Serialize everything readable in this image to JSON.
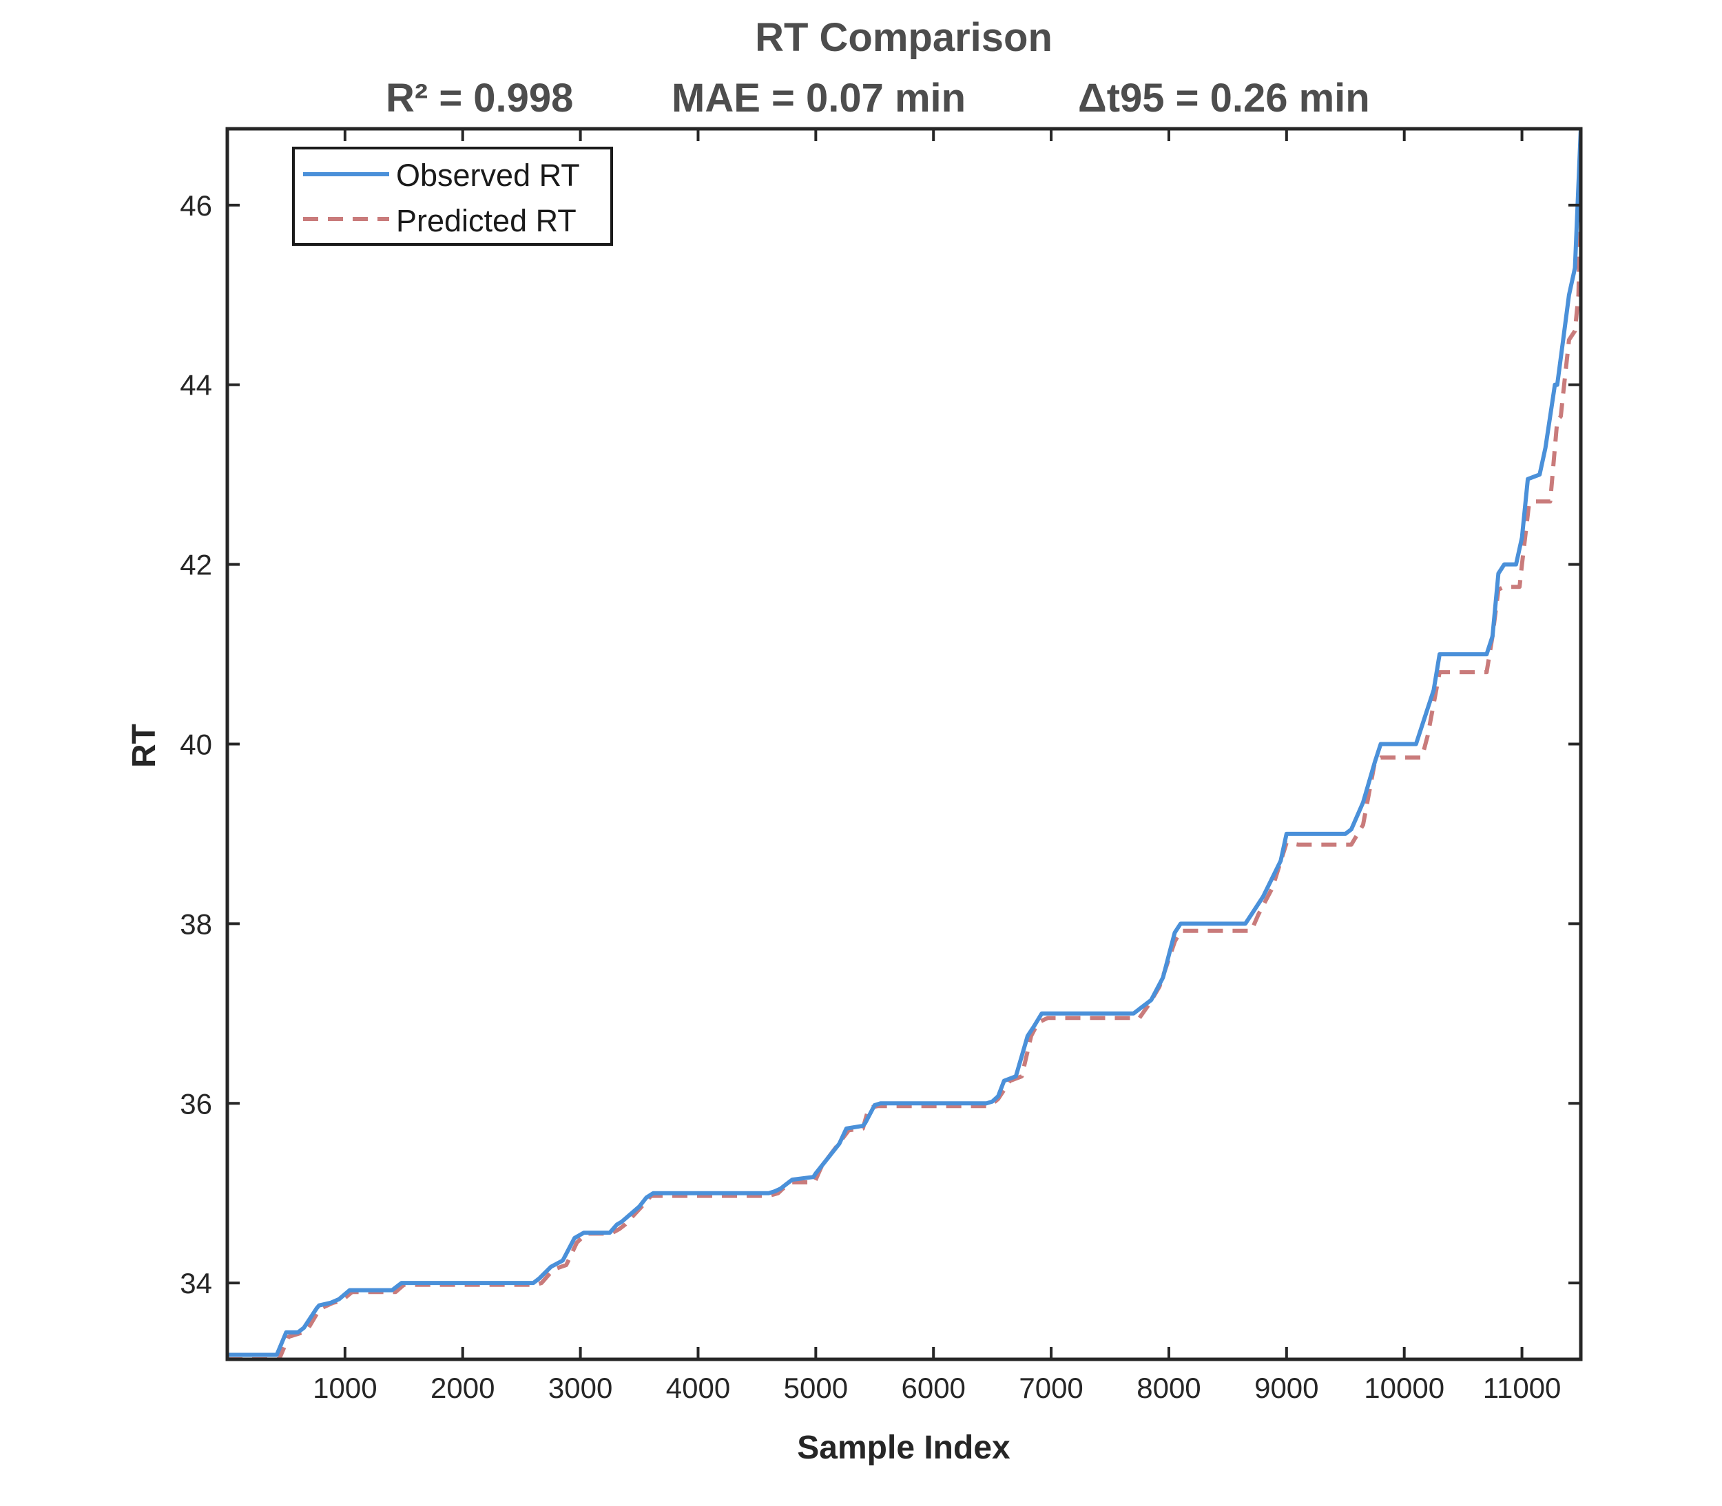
{
  "chart_data": {
    "type": "line",
    "title": "RT Comparison",
    "subtitle": [
      "R² = 0.998",
      "MAE = 0.07 min",
      "Δt95 = 0.26 min"
    ],
    "xlabel": "Sample Index",
    "ylabel": "RT",
    "xlim": [
      0,
      11500
    ],
    "ylim": [
      33.15,
      46.85
    ],
    "xticks": [
      1000,
      2000,
      3000,
      4000,
      5000,
      6000,
      7000,
      8000,
      9000,
      10000,
      11000
    ],
    "yticks": [
      34,
      36,
      38,
      40,
      42,
      44,
      46
    ],
    "grid": false,
    "legend_position": "top-left",
    "series": [
      {
        "name": "Observed RT",
        "color": "#4a90d9",
        "style": "solid",
        "x": [
          0,
          420,
          500,
          600,
          650,
          760,
          780,
          880,
          950,
          1040,
          1400,
          1480,
          2400,
          2600,
          2650,
          2750,
          2850,
          2950,
          3030,
          3250,
          3310,
          3350,
          3500,
          3560,
          3620,
          4600,
          4650,
          4700,
          4750,
          4800,
          4980,
          5000,
          5200,
          5260,
          5400,
          5420,
          5500,
          5550,
          6450,
          6500,
          6550,
          6600,
          6700,
          6800,
          6850,
          6920,
          7700,
          7750,
          7850,
          7950,
          8050,
          8100,
          8650,
          8700,
          8800,
          8950,
          9000,
          9500,
          9550,
          9650,
          9750,
          9800,
          10100,
          10150,
          10250,
          10300,
          10700,
          10750,
          10800,
          10850,
          10950,
          11000,
          11050,
          11150,
          11200,
          11280,
          11300,
          11350,
          11400,
          11450,
          11500
        ],
        "y": [
          33.2,
          33.2,
          33.45,
          33.45,
          33.5,
          33.72,
          33.75,
          33.78,
          33.82,
          33.92,
          33.92,
          34.0,
          34.0,
          34.0,
          34.05,
          34.18,
          34.25,
          34.5,
          34.56,
          34.56,
          34.65,
          34.68,
          34.85,
          34.95,
          35.0,
          35.0,
          35.02,
          35.05,
          35.1,
          35.15,
          35.18,
          35.22,
          35.55,
          35.72,
          35.75,
          35.78,
          35.98,
          36.0,
          36.0,
          36.02,
          36.08,
          36.25,
          36.3,
          36.75,
          36.85,
          37.0,
          37.0,
          37.05,
          37.15,
          37.4,
          37.9,
          38.0,
          38.0,
          38.1,
          38.3,
          38.7,
          39.0,
          39.0,
          39.05,
          39.35,
          39.8,
          40.0,
          40.0,
          40.2,
          40.6,
          41.0,
          41.0,
          41.2,
          41.9,
          42.0,
          42.0,
          42.3,
          42.95,
          43.0,
          43.3,
          44.0,
          44.0,
          44.5,
          45.0,
          45.3,
          46.85
        ]
      },
      {
        "name": "Predicted RT",
        "color": "#c97b7b",
        "style": "dashed",
        "x": [
          0,
          440,
          520,
          640,
          690,
          780,
          800,
          900,
          970,
          1060,
          1430,
          1500,
          2400,
          2620,
          2670,
          2770,
          2880,
          2970,
          3050,
          3260,
          3330,
          3380,
          3520,
          3600,
          4600,
          4680,
          4720,
          4800,
          4990,
          5050,
          5280,
          5400,
          5450,
          5530,
          6480,
          6550,
          6650,
          6750,
          6830,
          6890,
          6970,
          7750,
          7830,
          7920,
          8050,
          8100,
          8700,
          8760,
          8880,
          9000,
          9100,
          9550,
          9650,
          9750,
          9800,
          10150,
          10200,
          10300,
          10700,
          10750,
          10800,
          10850,
          10980,
          11000,
          11060,
          11100,
          11240,
          11300,
          11330,
          11350,
          11400,
          11450,
          11480,
          11500
        ],
        "y": [
          33.15,
          33.15,
          33.4,
          33.45,
          33.5,
          33.7,
          33.72,
          33.78,
          33.8,
          33.9,
          33.9,
          33.98,
          33.98,
          33.98,
          34.0,
          34.15,
          34.2,
          34.45,
          34.55,
          34.55,
          34.6,
          34.65,
          34.85,
          34.97,
          34.97,
          35.0,
          35.05,
          35.12,
          35.12,
          35.3,
          35.7,
          35.72,
          35.95,
          35.97,
          35.97,
          36.05,
          36.25,
          36.3,
          36.75,
          36.9,
          36.95,
          36.95,
          37.1,
          37.3,
          37.8,
          37.92,
          37.92,
          38.1,
          38.4,
          38.9,
          38.88,
          38.88,
          39.1,
          39.8,
          39.85,
          39.85,
          40.1,
          40.8,
          40.8,
          41.2,
          41.72,
          41.75,
          41.75,
          42.0,
          42.67,
          42.7,
          42.7,
          43.6,
          43.65,
          43.9,
          44.5,
          44.6,
          45.0,
          46.2
        ]
      }
    ]
  }
}
